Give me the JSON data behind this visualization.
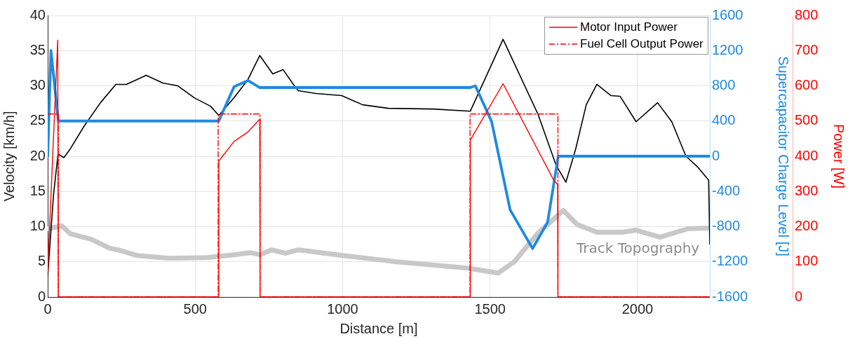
{
  "chart_data": {
    "type": "line",
    "xlabel": "Distance [m]",
    "ylabel": "Velocity [km/h]",
    "y2label": "Supercapacitor Charge Level [J]",
    "y3label": "Power [W]",
    "xlim": [
      0,
      2245
    ],
    "xticks": [
      0,
      500,
      1000,
      1500,
      2000
    ],
    "ylim": [
      0,
      40
    ],
    "yticks": [
      0,
      5,
      10,
      15,
      20,
      25,
      30,
      35,
      40
    ],
    "y2lim": [
      -1600,
      1600
    ],
    "y2ticks": [
      -1600,
      -1200,
      -800,
      -400,
      0,
      400,
      800,
      1200,
      1600
    ],
    "y3lim": [
      0,
      800
    ],
    "y3ticks": [
      0,
      100,
      200,
      300,
      400,
      500,
      600,
      700,
      800
    ],
    "grid": true,
    "legend": "top right",
    "marker": "none",
    "series": [
      {
        "color": "#000000",
        "x": [
          0,
          20,
          35,
          55,
          76,
          124,
          179,
          231,
          267,
          334,
          390,
          441,
          497,
          552,
          580,
          632,
          679,
          719,
          763,
          798,
          838,
          850,
          910,
          997,
          1068,
          1155,
          1306,
          1433,
          1544,
          1663,
          1723,
          1757,
          1790,
          1826,
          1862,
          1910,
          1941,
          1995,
          2068,
          2116,
          2164,
          2203,
          2241,
          2245
        ],
        "values": [
          3,
          14.6,
          20.3,
          19.8,
          21,
          24.3,
          27.6,
          30.2,
          30.2,
          31.5,
          30.4,
          30,
          28.3,
          27.1,
          25.8,
          28.3,
          30.9,
          34.3,
          31.7,
          32.3,
          29.9,
          29.3,
          28.9,
          28.6,
          27.3,
          26.8,
          26.7,
          26.4,
          36.6,
          25.9,
          18.8,
          16.3,
          21,
          27.3,
          30.2,
          28.6,
          28.5,
          24.9,
          27.6,
          24.9,
          20,
          18.5,
          16.6,
          7.5
        ]
      },
      {
        "name": "Track Topography",
        "color": "#c8c8c8",
        "x": [
          0,
          48,
          76,
          148,
          211,
          238,
          302,
          413,
          540,
          632,
          687,
          719,
          759,
          806,
          850,
          1000,
          1183,
          1343,
          1422,
          1527,
          1582,
          1661,
          1748,
          1795,
          1862,
          1950,
          1995,
          2076,
          2171,
          2243
        ],
        "values": [
          9.7,
          10.1,
          9,
          8.2,
          6.9,
          6.7,
          5.9,
          5.5,
          5.6,
          6,
          6.3,
          6,
          6.7,
          6.2,
          6.7,
          5.9,
          5,
          4.4,
          4.1,
          3.4,
          5,
          9,
          12.3,
          10.3,
          9.2,
          9.2,
          9.5,
          8.5,
          9.7,
          9.8
        ]
      },
      {
        "color": "#1e8ae0",
        "axis": "y2",
        "x": [
          0,
          11,
          36,
          580,
          632,
          679,
          719,
          1433,
          1450,
          1505,
          1568,
          1644,
          1695,
          1731,
          2245
        ],
        "values": [
          0,
          1200,
          400,
          400,
          790,
          860,
          780,
          780,
          800,
          395,
          -610,
          -1050,
          -750,
          0,
          0
        ]
      },
      {
        "name": "Motor Input Power",
        "color": "#ff0000",
        "axis": "y3",
        "line_style": "solid",
        "x": [
          0,
          34,
          36,
          578,
          580,
          632,
          679,
          719,
          720,
          1432,
          1433,
          1544,
          1715,
          1729,
          1730,
          2245
        ],
        "values": [
          72,
          730,
          0,
          0,
          386,
          442,
          469,
          505,
          0,
          0,
          446,
          606,
          333,
          320,
          0,
          0
        ]
      },
      {
        "name": "Fuel Cell Output Power",
        "color": "#ff0000",
        "axis": "y3",
        "line_style": "dashed",
        "x": [
          0,
          36,
          36,
          578,
          578,
          720,
          720,
          1432,
          1432,
          1730,
          1730,
          2245
        ],
        "values": [
          520,
          520,
          0,
          0,
          520,
          520,
          0,
          0,
          520,
          520,
          0,
          0
        ]
      }
    ]
  }
}
